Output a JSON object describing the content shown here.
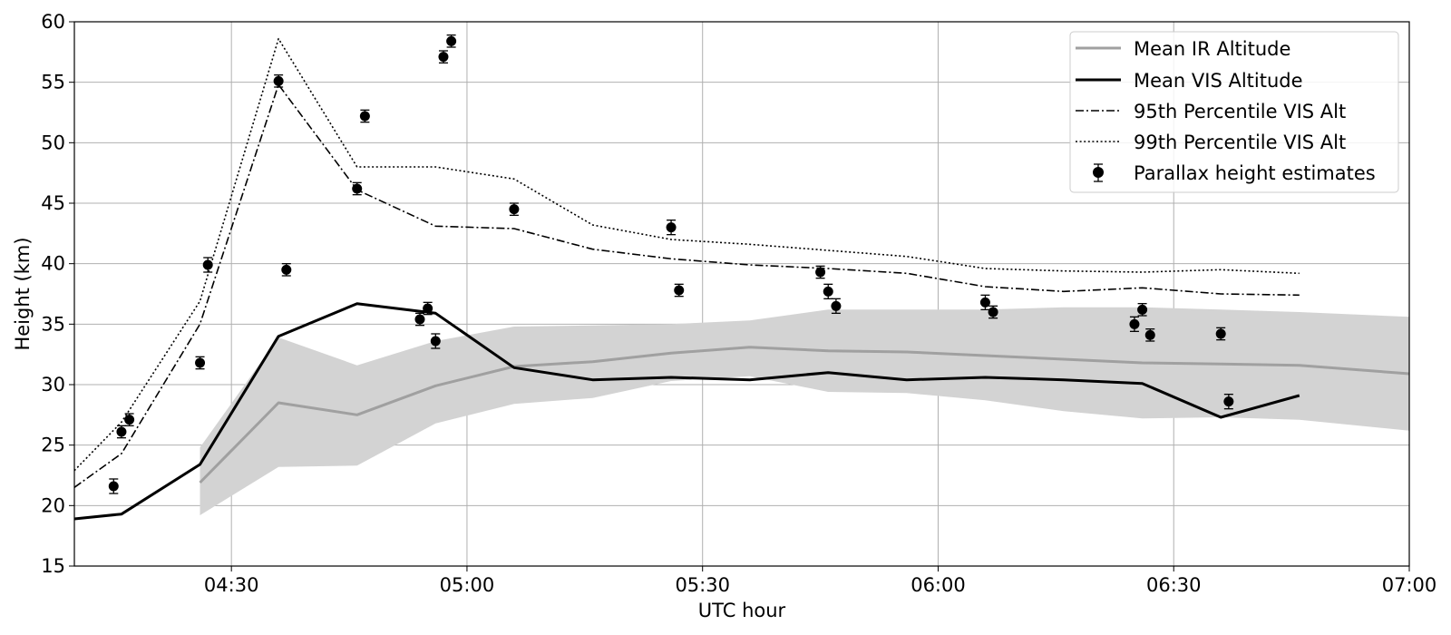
{
  "chart_data": {
    "type": "line",
    "title": "",
    "xlabel": "UTC hour",
    "ylabel": "Height (km)",
    "xlim": [
      "04:10",
      "07:00"
    ],
    "ylim": [
      15,
      60
    ],
    "x_ticks": [
      "04:30",
      "05:00",
      "05:30",
      "06:00",
      "06:30",
      "07:00"
    ],
    "y_ticks": [
      15,
      20,
      25,
      30,
      35,
      40,
      45,
      50,
      55,
      60
    ],
    "grid": true,
    "legend_position": "top-right",
    "band": {
      "color": "#d3d3d3",
      "x": [
        "04:26",
        "04:36",
        "04:46",
        "04:56",
        "05:06",
        "05:16",
        "05:26",
        "05:36",
        "05:46",
        "05:56",
        "06:06",
        "06:16",
        "06:26",
        "06:36",
        "06:46",
        "07:00"
      ],
      "lower": [
        19.2,
        23.2,
        23.3,
        26.8,
        28.4,
        28.9,
        30.3,
        30.7,
        29.4,
        29.3,
        28.7,
        27.8,
        27.2,
        27.3,
        27.1,
        26.2
      ],
      "upper": [
        24.8,
        33.9,
        31.6,
        33.6,
        34.8,
        34.9,
        35.0,
        35.3,
        36.2,
        36.2,
        36.2,
        36.4,
        36.4,
        36.2,
        36.0,
        35.6
      ]
    },
    "series": [
      {
        "name": "Mean IR Altitude",
        "style": "solid-gray",
        "color": "#a0a0a0",
        "x": [
          "04:26",
          "04:36",
          "04:46",
          "04:56",
          "05:06",
          "05:16",
          "05:26",
          "05:36",
          "05:46",
          "05:56",
          "06:06",
          "06:16",
          "06:26",
          "06:36",
          "06:46",
          "07:00"
        ],
        "y": [
          21.9,
          28.5,
          27.5,
          29.9,
          31.5,
          31.9,
          32.6,
          33.1,
          32.8,
          32.7,
          32.4,
          32.1,
          31.8,
          31.7,
          31.6,
          30.9
        ]
      },
      {
        "name": "Mean VIS Altitude",
        "style": "solid-black",
        "color": "#000000",
        "x": [
          "04:10",
          "04:16",
          "04:26",
          "04:36",
          "04:46",
          "04:56",
          "05:06",
          "05:16",
          "05:26",
          "05:36",
          "05:46",
          "05:56",
          "06:06",
          "06:16",
          "06:26",
          "06:36",
          "06:46"
        ],
        "y": [
          18.9,
          19.3,
          23.4,
          34.0,
          36.7,
          35.9,
          31.4,
          30.4,
          30.6,
          30.4,
          31.0,
          30.4,
          30.6,
          30.4,
          30.1,
          27.3,
          29.1
        ]
      },
      {
        "name": "95th Percentile VIS Alt",
        "style": "dashdot",
        "color": "#000000",
        "x": [
          "04:10",
          "04:16",
          "04:26",
          "04:36",
          "04:46",
          "04:56",
          "05:06",
          "05:16",
          "05:26",
          "05:36",
          "05:46",
          "05:56",
          "06:06",
          "06:16",
          "06:26",
          "06:36",
          "06:46"
        ],
        "y": [
          21.5,
          24.3,
          35.0,
          54.8,
          46.1,
          43.1,
          42.9,
          41.2,
          40.4,
          39.9,
          39.6,
          39.2,
          38.1,
          37.7,
          38.0,
          37.5,
          37.4
        ]
      },
      {
        "name": "99th Percentile VIS Alt",
        "style": "dotted",
        "color": "#000000",
        "x": [
          "04:10",
          "04:16",
          "04:26",
          "04:36",
          "04:46",
          "04:56",
          "05:06",
          "05:16",
          "05:26",
          "05:36",
          "05:46",
          "05:56",
          "06:06",
          "06:16",
          "06:26",
          "06:36",
          "06:46"
        ],
        "y": [
          22.9,
          26.9,
          36.9,
          58.6,
          48.0,
          48.0,
          47.0,
          43.2,
          42.0,
          41.6,
          41.1,
          40.6,
          39.6,
          39.4,
          39.3,
          39.5,
          39.2
        ]
      }
    ],
    "scatter": {
      "name": "Parallax height estimates",
      "color": "#000000",
      "points": [
        {
          "x": "04:15",
          "y": 21.6,
          "err": 0.6
        },
        {
          "x": "04:16",
          "y": 26.1,
          "err": 0.5
        },
        {
          "x": "04:17",
          "y": 27.1,
          "err": 0.5
        },
        {
          "x": "04:26",
          "y": 31.8,
          "err": 0.5
        },
        {
          "x": "04:27",
          "y": 39.9,
          "err": 0.6
        },
        {
          "x": "04:36",
          "y": 55.1,
          "err": 0.5
        },
        {
          "x": "04:37",
          "y": 39.5,
          "err": 0.5
        },
        {
          "x": "04:46",
          "y": 46.2,
          "err": 0.5
        },
        {
          "x": "04:47",
          "y": 52.2,
          "err": 0.5
        },
        {
          "x": "04:54",
          "y": 35.4,
          "err": 0.5
        },
        {
          "x": "04:55",
          "y": 36.3,
          "err": 0.5
        },
        {
          "x": "04:56",
          "y": 33.6,
          "err": 0.6
        },
        {
          "x": "04:57",
          "y": 57.1,
          "err": 0.5
        },
        {
          "x": "04:58",
          "y": 58.4,
          "err": 0.5
        },
        {
          "x": "05:06",
          "y": 44.5,
          "err": 0.5
        },
        {
          "x": "05:26",
          "y": 43.0,
          "err": 0.6
        },
        {
          "x": "05:27",
          "y": 37.8,
          "err": 0.5
        },
        {
          "x": "05:45",
          "y": 39.3,
          "err": 0.5
        },
        {
          "x": "05:46",
          "y": 37.7,
          "err": 0.6
        },
        {
          "x": "05:47",
          "y": 36.5,
          "err": 0.6
        },
        {
          "x": "06:06",
          "y": 36.8,
          "err": 0.6
        },
        {
          "x": "06:07",
          "y": 36.0,
          "err": 0.5
        },
        {
          "x": "06:25",
          "y": 35.0,
          "err": 0.6
        },
        {
          "x": "06:26",
          "y": 36.2,
          "err": 0.5
        },
        {
          "x": "06:27",
          "y": 34.1,
          "err": 0.5
        },
        {
          "x": "06:36",
          "y": 34.2,
          "err": 0.5
        },
        {
          "x": "06:37",
          "y": 28.6,
          "err": 0.6
        }
      ]
    }
  }
}
